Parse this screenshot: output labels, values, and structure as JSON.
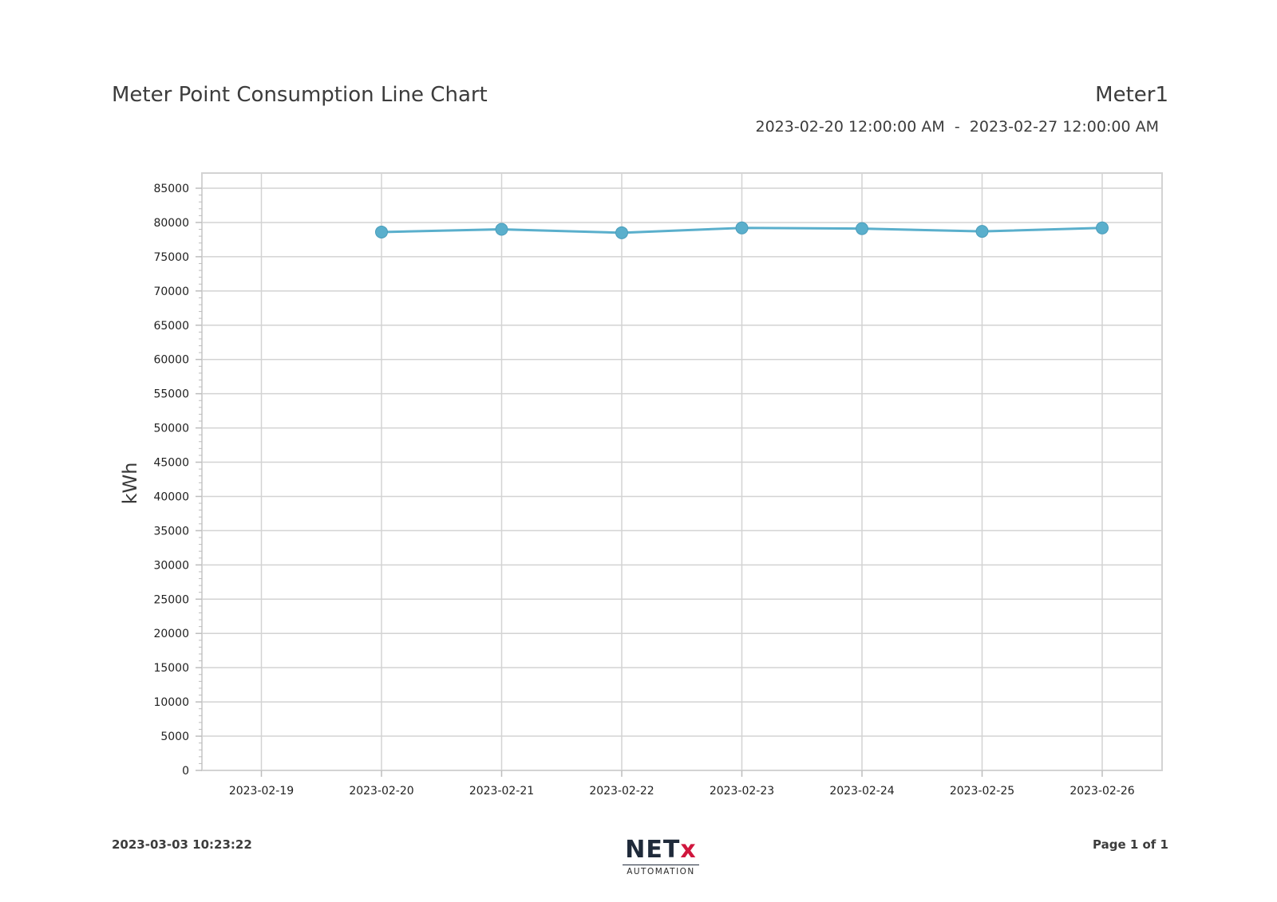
{
  "header": {
    "title": "Meter Point Consumption Line Chart",
    "meter_name": "Meter1",
    "range_start": "2023-02-20 12:00:00 AM",
    "range_separator": "-",
    "range_end": "2023-02-27 12:00:00 AM"
  },
  "footer": {
    "timestamp": "2023-03-03 10:23:22",
    "page": "Page 1 of 1",
    "logo_main": "NET",
    "logo_accent": "x",
    "logo_sub": "AUTOMATION"
  },
  "colors": {
    "series": "#5aafcc",
    "grid": "#d3d3d3",
    "logo_accent": "#d0163d"
  },
  "chart_data": {
    "type": "line",
    "ylabel": "kWh",
    "xlabel": "",
    "categories": [
      "2023-02-19",
      "2023-02-20",
      "2023-02-21",
      "2023-02-22",
      "2023-02-23",
      "2023-02-24",
      "2023-02-25",
      "2023-02-26"
    ],
    "series": [
      {
        "values": [
          null,
          78600,
          79000,
          78500,
          79200,
          79100,
          78700,
          79200
        ]
      }
    ],
    "ylim": [
      0,
      85000
    ],
    "yticks": [
      0,
      5000,
      10000,
      15000,
      20000,
      25000,
      30000,
      35000,
      40000,
      45000,
      50000,
      55000,
      60000,
      65000,
      70000,
      75000,
      80000,
      85000
    ],
    "grid": true,
    "legend": "none"
  }
}
